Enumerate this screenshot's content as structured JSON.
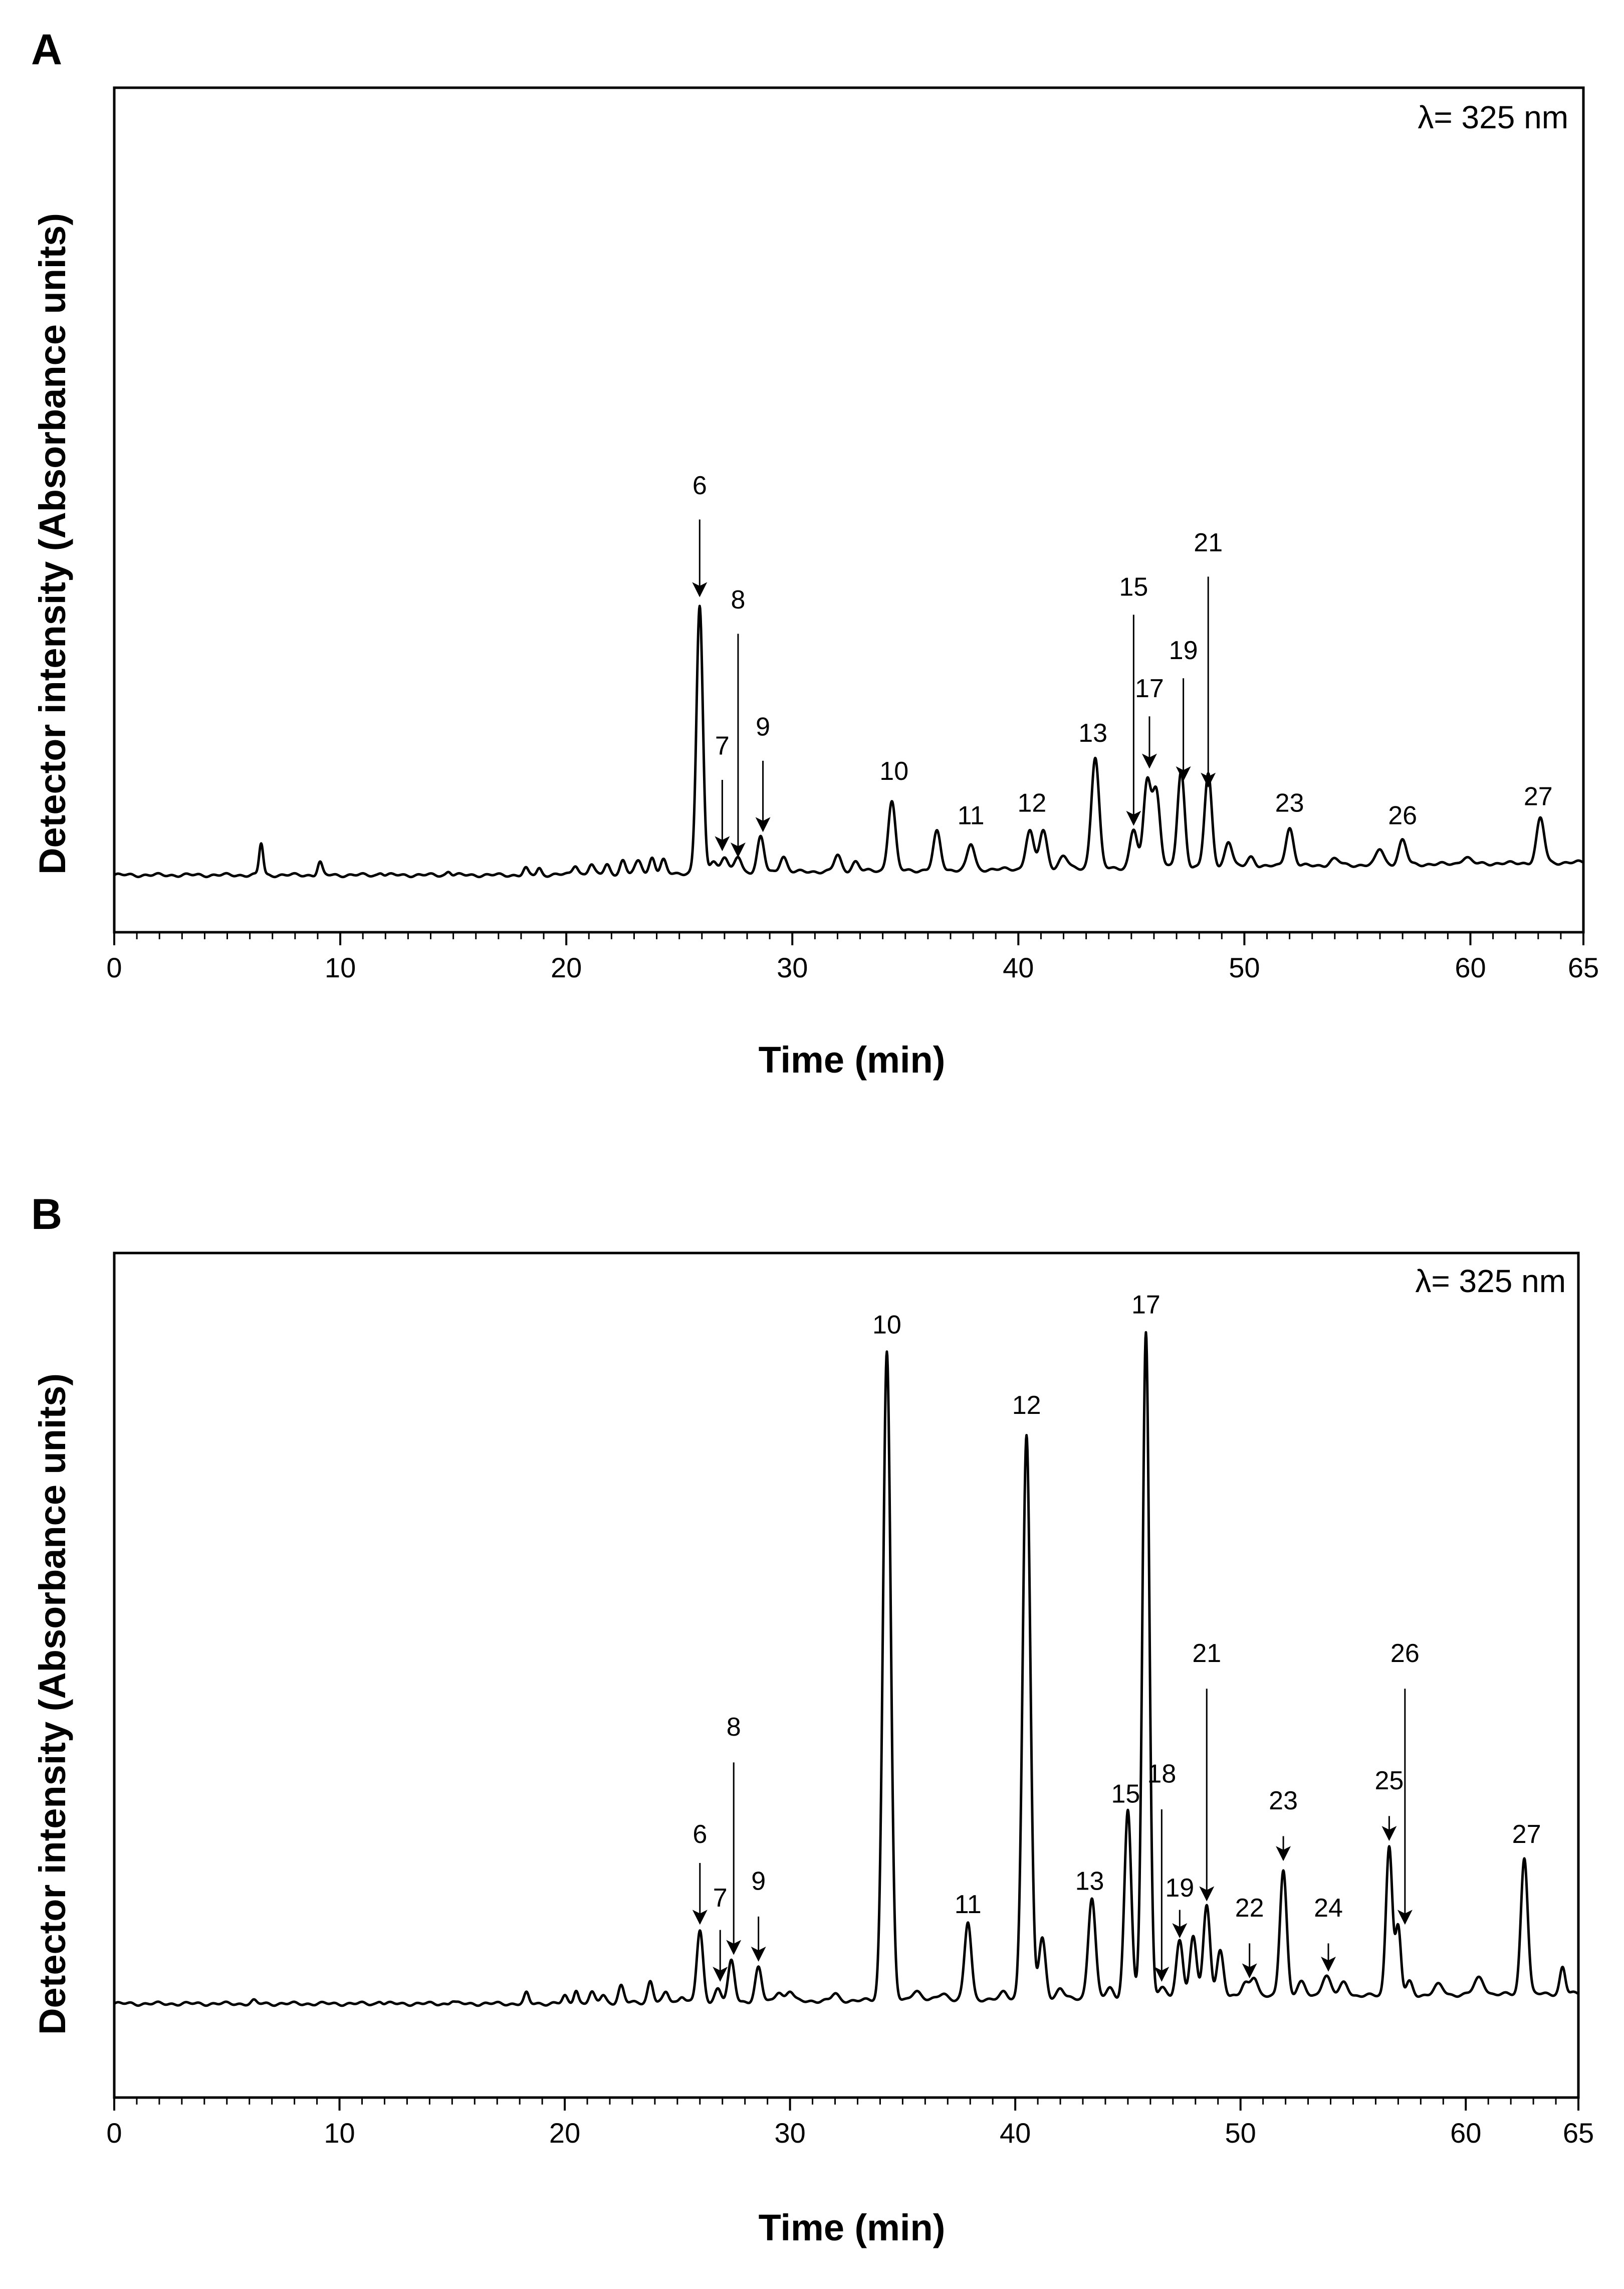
{
  "figure": {
    "panel_a_letter": "A",
    "panel_b_letter": "B",
    "y_axis_title": "Detector intensity (Absorbance units)",
    "x_axis_title": "Time (min)",
    "wavelength_label": "λ= 325 nm"
  },
  "chart_data": [
    {
      "panel": "A",
      "type": "line",
      "title": "",
      "xlabel": "Time (min)",
      "ylabel": "Detector intensity (Absorbance units)",
      "xlim": [
        0,
        65
      ],
      "ylim": [
        -0.09,
        1.24
      ],
      "x_ticks": [
        0,
        10,
        20,
        30,
        40,
        50,
        60,
        65
      ],
      "minor_tick_step": 1,
      "annotation": "λ= 325 nm",
      "baseline": {
        "start": 0.0,
        "end": 0.02,
        "noise": 0.003
      },
      "peaks": [
        [
          6.5,
          0.05,
          0.09
        ],
        [
          9.1,
          0.02,
          0.1
        ],
        [
          11.8,
          0.004,
          0.1
        ],
        [
          14.8,
          0.006,
          0.1
        ],
        [
          18.2,
          0.01,
          0.1
        ],
        [
          18.8,
          0.01,
          0.1
        ],
        [
          20.4,
          0.015,
          0.12
        ],
        [
          21.1,
          0.015,
          0.12
        ],
        [
          21.8,
          0.015,
          0.12
        ],
        [
          22.5,
          0.02,
          0.12
        ],
        [
          23.2,
          0.02,
          0.15
        ],
        [
          23.8,
          0.025,
          0.12
        ],
        [
          24.3,
          0.02,
          0.12
        ],
        [
          25.9,
          0.42,
          0.14
        ],
        [
          26.5,
          0.02,
          0.15
        ],
        [
          27.0,
          0.025,
          0.15
        ],
        [
          27.6,
          0.025,
          0.15
        ],
        [
          28.6,
          0.055,
          0.15
        ],
        [
          29.6,
          0.025,
          0.15
        ],
        [
          32.0,
          0.025,
          0.15
        ],
        [
          32.8,
          0.015,
          0.15
        ],
        [
          34.4,
          0.11,
          0.16
        ],
        [
          36.4,
          0.06,
          0.16
        ],
        [
          37.9,
          0.04,
          0.16
        ],
        [
          40.5,
          0.06,
          0.17
        ],
        [
          41.1,
          0.06,
          0.17
        ],
        [
          42.0,
          0.02,
          0.18
        ],
        [
          43.4,
          0.175,
          0.17
        ],
        [
          45.1,
          0.06,
          0.16
        ],
        [
          45.7,
          0.135,
          0.16
        ],
        [
          46.1,
          0.12,
          0.17
        ],
        [
          47.2,
          0.15,
          0.16
        ],
        [
          48.4,
          0.145,
          0.16
        ],
        [
          49.3,
          0.04,
          0.16
        ],
        [
          50.3,
          0.015,
          0.16
        ],
        [
          52.0,
          0.06,
          0.17
        ],
        [
          54.0,
          0.01,
          0.2
        ],
        [
          56.0,
          0.025,
          0.17
        ],
        [
          57.0,
          0.038,
          0.17
        ],
        [
          59.8,
          0.01,
          0.2
        ],
        [
          63.1,
          0.07,
          0.17
        ]
      ],
      "annotations": [
        {
          "label": "6",
          "time_min": 25.9,
          "arrow_tip": 0.44,
          "arrow_top": 0.56,
          "label_y": 0.6
        },
        {
          "label": "7",
          "time_min": 26.9,
          "arrow_tip": 0.04,
          "arrow_top": 0.15,
          "label_y": 0.19
        },
        {
          "label": "8",
          "time_min": 27.6,
          "arrow_tip": 0.03,
          "arrow_top": 0.38,
          "label_y": 0.42
        },
        {
          "label": "9",
          "time_min": 28.7,
          "arrow_tip": 0.07,
          "arrow_top": 0.18,
          "label_y": 0.22
        },
        {
          "label": "10",
          "time_min": 34.5,
          "arrow_tip": null,
          "arrow_top": null,
          "label_y": 0.15
        },
        {
          "label": "11",
          "time_min": 37.9,
          "arrow_tip": null,
          "arrow_top": null,
          "label_y": 0.08
        },
        {
          "label": "12",
          "time_min": 40.6,
          "arrow_tip": null,
          "arrow_top": null,
          "label_y": 0.1
        },
        {
          "label": "13",
          "time_min": 43.3,
          "arrow_tip": null,
          "arrow_top": null,
          "label_y": 0.21
        },
        {
          "label": "15",
          "time_min": 45.1,
          "arrow_tip": 0.08,
          "arrow_top": 0.41,
          "label_y": 0.44
        },
        {
          "label": "17",
          "time_min": 45.8,
          "arrow_tip": 0.17,
          "arrow_top": 0.25,
          "label_y": 0.28
        },
        {
          "label": "19",
          "time_min": 47.3,
          "arrow_tip": 0.15,
          "arrow_top": 0.31,
          "label_y": 0.34
        },
        {
          "label": "21",
          "time_min": 48.4,
          "arrow_tip": 0.14,
          "arrow_top": 0.47,
          "label_y": 0.51
        },
        {
          "label": "23",
          "time_min": 52.0,
          "arrow_tip": null,
          "arrow_top": null,
          "label_y": 0.1
        },
        {
          "label": "26",
          "time_min": 57.0,
          "arrow_tip": null,
          "arrow_top": null,
          "label_y": 0.08
        },
        {
          "label": "27",
          "time_min": 63.0,
          "arrow_tip": null,
          "arrow_top": null,
          "label_y": 0.11
        }
      ]
    },
    {
      "panel": "B",
      "type": "line",
      "title": "",
      "xlabel": "Time (min)",
      "ylabel": "Detector intensity (Absorbance units)",
      "xlim": [
        0,
        65
      ],
      "ylim": [
        -0.14,
        1.12
      ],
      "x_ticks": [
        0,
        10,
        20,
        30,
        40,
        50,
        60,
        65
      ],
      "minor_tick_step": 1,
      "annotation": "λ= 325 nm",
      "baseline": {
        "start": 0.0,
        "end": 0.015,
        "noise": 0.003
      },
      "peaks": [
        [
          6.2,
          0.004,
          0.1
        ],
        [
          11.8,
          0.004,
          0.1
        ],
        [
          15.0,
          0.004,
          0.1
        ],
        [
          18.3,
          0.015,
          0.1
        ],
        [
          20.0,
          0.01,
          0.1
        ],
        [
          20.5,
          0.02,
          0.1
        ],
        [
          21.2,
          0.015,
          0.12
        ],
        [
          21.7,
          0.012,
          0.12
        ],
        [
          22.5,
          0.025,
          0.12
        ],
        [
          23.8,
          0.032,
          0.12
        ],
        [
          24.5,
          0.015,
          0.12
        ],
        [
          25.2,
          0.01,
          0.12
        ],
        [
          26.0,
          0.105,
          0.14
        ],
        [
          26.8,
          0.02,
          0.14
        ],
        [
          27.4,
          0.06,
          0.14
        ],
        [
          28.6,
          0.05,
          0.14
        ],
        [
          29.5,
          0.015,
          0.15
        ],
        [
          30.0,
          0.015,
          0.15
        ],
        [
          32.0,
          0.01,
          0.15
        ],
        [
          34.3,
          0.97,
          0.17
        ],
        [
          35.6,
          0.015,
          0.18
        ],
        [
          36.8,
          0.01,
          0.18
        ],
        [
          37.9,
          0.115,
          0.15
        ],
        [
          39.5,
          0.01,
          0.15
        ],
        [
          40.5,
          0.84,
          0.17
        ],
        [
          41.2,
          0.09,
          0.15
        ],
        [
          42.0,
          0.015,
          0.15
        ],
        [
          43.4,
          0.15,
          0.16
        ],
        [
          44.2,
          0.015,
          0.16
        ],
        [
          45.0,
          0.28,
          0.15
        ],
        [
          45.8,
          0.995,
          0.15
        ],
        [
          46.5,
          0.015,
          0.16
        ],
        [
          47.3,
          0.085,
          0.15
        ],
        [
          47.9,
          0.09,
          0.15
        ],
        [
          48.5,
          0.135,
          0.15
        ],
        [
          49.1,
          0.07,
          0.15
        ],
        [
          50.2,
          0.02,
          0.16
        ],
        [
          50.6,
          0.03,
          0.16
        ],
        [
          51.9,
          0.19,
          0.15
        ],
        [
          52.7,
          0.02,
          0.18
        ],
        [
          53.8,
          0.03,
          0.2
        ],
        [
          54.6,
          0.02,
          0.18
        ],
        [
          56.6,
          0.225,
          0.14
        ],
        [
          57.0,
          0.1,
          0.12
        ],
        [
          57.5,
          0.02,
          0.14
        ],
        [
          58.8,
          0.015,
          0.2
        ],
        [
          60.6,
          0.025,
          0.22
        ],
        [
          62.6,
          0.205,
          0.15
        ],
        [
          64.3,
          0.04,
          0.12
        ]
      ],
      "annotations": [
        {
          "label": "6",
          "time_min": 26.0,
          "arrow_tip": 0.12,
          "arrow_top": 0.21,
          "label_y": 0.24
        },
        {
          "label": "7",
          "time_min": 26.9,
          "arrow_tip": 0.035,
          "arrow_top": 0.11,
          "label_y": 0.145
        },
        {
          "label": "8",
          "time_min": 27.5,
          "arrow_tip": 0.075,
          "arrow_top": 0.36,
          "label_y": 0.4
        },
        {
          "label": "9",
          "time_min": 28.6,
          "arrow_tip": 0.065,
          "arrow_top": 0.13,
          "label_y": 0.17
        },
        {
          "label": "10",
          "time_min": 34.3,
          "arrow_tip": null,
          "arrow_top": null,
          "label_y": 1.0
        },
        {
          "label": "11",
          "time_min": 37.9,
          "arrow_tip": null,
          "arrow_top": null,
          "label_y": 0.135
        },
        {
          "label": "12",
          "time_min": 40.5,
          "arrow_tip": null,
          "arrow_top": null,
          "label_y": 0.88
        },
        {
          "label": "13",
          "time_min": 43.3,
          "arrow_tip": null,
          "arrow_top": null,
          "label_y": 0.17
        },
        {
          "label": "15",
          "time_min": 44.9,
          "arrow_tip": null,
          "arrow_top": null,
          "label_y": 0.3
        },
        {
          "label": "17",
          "time_min": 45.8,
          "arrow_tip": null,
          "arrow_top": null,
          "label_y": 1.03
        },
        {
          "label": "18",
          "time_min": 46.5,
          "arrow_tip": 0.035,
          "arrow_top": 0.29,
          "label_y": 0.33
        },
        {
          "label": "19",
          "time_min": 47.3,
          "arrow_tip": 0.1,
          "arrow_top": 0.14,
          "label_y": 0.16
        },
        {
          "label": "21",
          "time_min": 48.5,
          "arrow_tip": 0.155,
          "arrow_top": 0.47,
          "label_y": 0.51
        },
        {
          "label": "22",
          "time_min": 50.4,
          "arrow_tip": 0.04,
          "arrow_top": 0.09,
          "label_y": 0.13
        },
        {
          "label": "23",
          "time_min": 51.9,
          "arrow_tip": 0.215,
          "arrow_top": 0.25,
          "label_y": 0.29
        },
        {
          "label": "24",
          "time_min": 53.9,
          "arrow_tip": 0.05,
          "arrow_top": 0.09,
          "label_y": 0.13
        },
        {
          "label": "25",
          "time_min": 56.6,
          "arrow_tip": 0.245,
          "arrow_top": 0.28,
          "label_y": 0.32
        },
        {
          "label": "26",
          "time_min": 57.3,
          "arrow_tip": 0.12,
          "arrow_top": 0.47,
          "label_y": 0.51
        },
        {
          "label": "27",
          "time_min": 62.7,
          "arrow_tip": null,
          "arrow_top": null,
          "label_y": 0.24
        }
      ]
    }
  ]
}
